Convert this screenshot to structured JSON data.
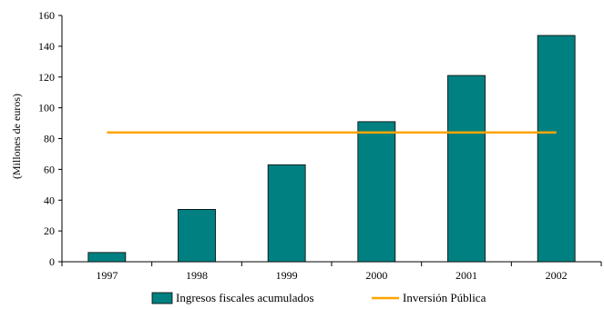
{
  "chart_data": {
    "type": "bar",
    "title": "",
    "xlabel": "",
    "ylabel": "(Millones de euros)",
    "categories": [
      "1997",
      "1998",
      "1999",
      "2000",
      "2001",
      "2002"
    ],
    "ylim": [
      0,
      160
    ],
    "yticks": [
      0,
      20,
      40,
      60,
      80,
      100,
      120,
      140,
      160
    ],
    "series": [
      {
        "name": "Ingresos fiscales acumulados",
        "type": "bar",
        "color": "#008080",
        "values": [
          6,
          34,
          63,
          91,
          121,
          147
        ]
      },
      {
        "name": "Inversión Pública",
        "type": "line",
        "color": "#FFA500",
        "values": [
          84,
          84,
          84,
          84,
          84,
          84
        ]
      }
    ],
    "grid": false,
    "legend": "bottom"
  }
}
